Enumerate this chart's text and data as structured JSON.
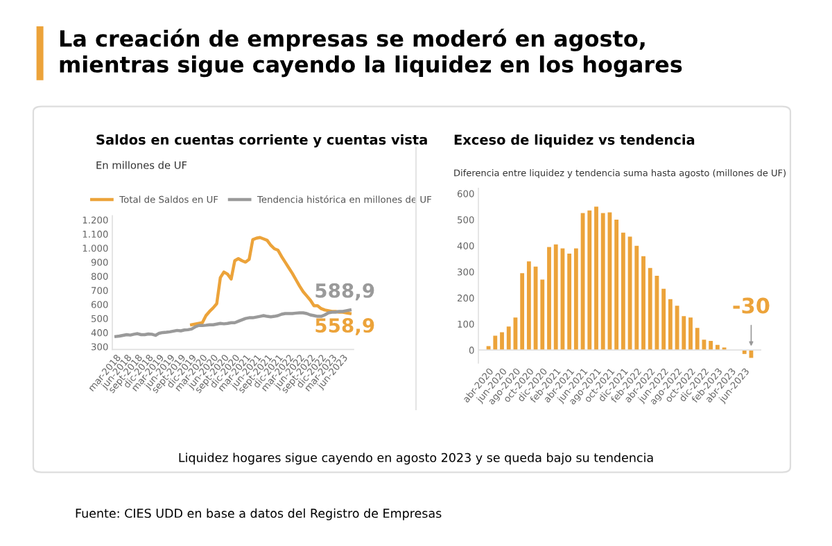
{
  "chart_data": [
    {
      "type": "line",
      "title": "Saldos en cuentas corriente y cuentas vista",
      "subtitle": "En millones de UF",
      "annotations": [
        "La creación de empresas se moderó en agosto,\nmientras sigue cayendo la liquidez en los hogares",
        "588,9",
        "558,9",
        "Liquidez hogares sigue cayendo en agosto 2023 y se queda bajo su tendencia",
        "Fuente: CIES UDD en base a datos del Registro de Empresas"
      ],
      "categories": [
        "mar-2018",
        null,
        null,
        "jun-2018",
        null,
        null,
        "sept-2018",
        null,
        null,
        "dic-2018",
        null,
        null,
        "mar-2019",
        null,
        null,
        "jun-2019",
        null,
        null,
        "sept-2019",
        null,
        null,
        "dic-2019",
        null,
        null,
        "mar-2020",
        null,
        null,
        "jun-2020",
        null,
        null,
        "sept-2020",
        null,
        null,
        "dic-2020",
        null,
        null,
        "mar-2021",
        null,
        null,
        "jun-2021",
        null,
        null,
        "sept-2021",
        null,
        null,
        "dic-2021",
        null,
        null,
        "mar-2022",
        null,
        null,
        "jun-2022",
        null,
        null,
        "sept-2022",
        null,
        null,
        "dic-2022",
        null,
        null,
        "mar-2023",
        null,
        null,
        "jun-2023",
        null,
        null
      ],
      "series": [
        {
          "name": "Total de Saldos en UF",
          "color": "#eca33a",
          "values": [
            null,
            null,
            null,
            null,
            null,
            null,
            null,
            null,
            null,
            null,
            null,
            null,
            null,
            null,
            null,
            null,
            null,
            null,
            null,
            null,
            null,
            455,
            460,
            465,
            470,
            520,
            550,
            575,
            605,
            790,
            830,
            815,
            780,
            910,
            925,
            910,
            900,
            920,
            1060,
            1070,
            1075,
            1065,
            1055,
            1020,
            995,
            985,
            940,
            900,
            860,
            820,
            775,
            730,
            690,
            660,
            630,
            590,
            590,
            570,
            560,
            555,
            550,
            550,
            545,
            545,
            540,
            535
          ]
        },
        {
          "name": "Tendencia histórica en millones de UF",
          "color": "#9a9a9a",
          "values": [
            372,
            375,
            380,
            385,
            382,
            388,
            392,
            385,
            385,
            390,
            388,
            380,
            395,
            400,
            402,
            405,
            410,
            415,
            412,
            418,
            420,
            425,
            440,
            450,
            450,
            452,
            455,
            455,
            460,
            465,
            462,
            465,
            470,
            470,
            480,
            490,
            500,
            505,
            505,
            510,
            515,
            520,
            515,
            512,
            515,
            520,
            530,
            535,
            535,
            535,
            538,
            540,
            540,
            535,
            525,
            520,
            515,
            515,
            525,
            540,
            545,
            545,
            550,
            550,
            555,
            560
          ]
        }
      ],
      "ylim": [
        280,
        1230
      ],
      "yticks": [
        300,
        400,
        500,
        600,
        700,
        800,
        900,
        {
          "value": 1000,
          "label": "1.000"
        },
        {
          "value": 1100,
          "label": "1.100"
        },
        {
          "value": 1200,
          "label": "1.200"
        }
      ],
      "legend": "top",
      "grid": false
    },
    {
      "type": "bar",
      "title": "Exceso de liquidez vs tendencia",
      "subtitle": "Diferencia entre liquidez y tendencia suma hasta agosto (millones de UF)",
      "categories": [
        "abr-2020",
        null,
        "jun-2020",
        null,
        "ago-2020",
        null,
        "oct-2020",
        null,
        "dic-2020",
        null,
        "feb-2021",
        null,
        "abr-2021",
        null,
        "jun-2021",
        null,
        "ago-2021",
        null,
        "oct-2021",
        null,
        "dic-2021",
        null,
        "feb-2022",
        null,
        "abr-2022",
        null,
        "jun-2022",
        null,
        "ago-2022",
        null,
        "oct-2022",
        null,
        "dic-2022",
        null,
        "feb-2023",
        null,
        "abr-2023",
        null,
        "jun-2023",
        null
      ],
      "values": [
        15,
        55,
        68,
        90,
        125,
        295,
        340,
        320,
        270,
        395,
        405,
        390,
        370,
        390,
        525,
        535,
        550,
        525,
        528,
        500,
        450,
        435,
        400,
        360,
        315,
        285,
        235,
        195,
        170,
        130,
        125,
        85,
        40,
        35,
        20,
        10,
        null,
        null,
        -15,
        -30
      ],
      "value_labels": [
        null,
        null,
        null,
        null,
        null,
        null,
        null,
        null,
        null,
        null,
        null,
        null,
        null,
        null,
        null,
        null,
        null,
        null,
        null,
        null,
        null,
        null,
        null,
        null,
        null,
        null,
        null,
        null,
        null,
        null,
        null,
        null,
        null,
        null,
        null,
        null,
        null,
        null,
        null,
        "-30"
      ],
      "color": "#eca33a",
      "ylim": [
        -50,
        620
      ],
      "yticks": [
        0,
        100,
        200,
        300,
        400,
        500,
        600
      ],
      "grid": false
    }
  ]
}
